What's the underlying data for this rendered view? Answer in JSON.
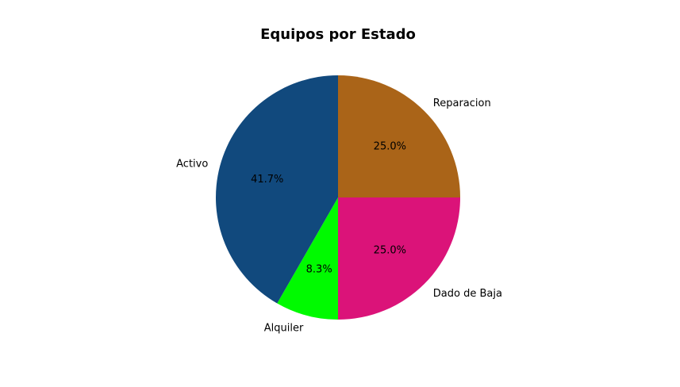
{
  "chart_data": {
    "type": "pie",
    "title": "Equipos por Estado",
    "start_angle_deg": 90,
    "direction": "clockwise",
    "slices": [
      {
        "label": "Reparacion",
        "value": 25.0,
        "pct_label": "25.0%",
        "color": "#AA6418"
      },
      {
        "label": "Dado de Baja",
        "value": 25.0,
        "pct_label": "25.0%",
        "color": "#DB1379"
      },
      {
        "label": "Alquiler",
        "value": 8.3,
        "pct_label": "8.3%",
        "color": "#00FA00"
      },
      {
        "label": "Activo",
        "value": 41.7,
        "pct_label": "41.7%",
        "color": "#11497D"
      }
    ]
  }
}
